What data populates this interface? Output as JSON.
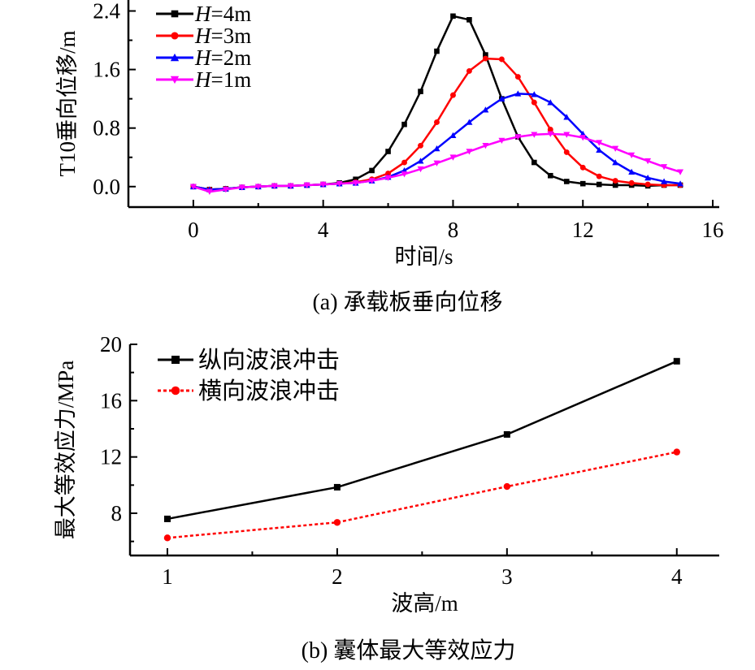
{
  "chart_data": [
    {
      "type": "line",
      "caption": "(a)  承载板垂向位移",
      "xlabel": "时间/s",
      "ylabel": "T10垂向位移/m",
      "xlim": [
        -2,
        16.2
      ],
      "ylim": [
        -0.28,
        2.55
      ],
      "xticks": [
        0,
        4,
        8,
        12,
        16
      ],
      "xtick_labels": [
        "0",
        "4",
        "8",
        "12",
        "16"
      ],
      "yticks": [
        0.0,
        0.8,
        1.6,
        2.4
      ],
      "ytick_labels": [
        "0.0",
        "0.8",
        "1.6",
        "2.4"
      ],
      "grid": false,
      "legend_position": "top-left",
      "x": [
        0,
        0.5,
        1,
        1.5,
        2,
        2.5,
        3,
        3.5,
        4,
        4.5,
        5,
        5.5,
        6,
        6.5,
        7,
        7.5,
        8,
        8.5,
        9,
        9.5,
        10,
        10.5,
        11,
        11.5,
        12,
        12.5,
        13,
        13.5,
        14,
        14.5,
        15
      ],
      "series": [
        {
          "name_prefix": "H",
          "name_suffix": "=4m",
          "color": "#000000",
          "marker": "square",
          "values": [
            0,
            -0.04,
            -0.03,
            -0.01,
            0,
            0.01,
            0.01,
            0.02,
            0.03,
            0.05,
            0.1,
            0.22,
            0.48,
            0.85,
            1.3,
            1.85,
            2.33,
            2.28,
            1.8,
            1.2,
            0.68,
            0.33,
            0.15,
            0.07,
            0.04,
            0.03,
            0.02,
            0.02,
            0.01,
            0.02,
            0.02
          ]
        },
        {
          "name_prefix": "H",
          "name_suffix": "=3m",
          "color": "#ff0000",
          "marker": "circle",
          "values": [
            0,
            -0.04,
            -0.03,
            -0.01,
            0,
            0.01,
            0.01,
            0.02,
            0.03,
            0.04,
            0.06,
            0.1,
            0.18,
            0.33,
            0.56,
            0.88,
            1.25,
            1.58,
            1.75,
            1.74,
            1.5,
            1.15,
            0.78,
            0.47,
            0.26,
            0.14,
            0.08,
            0.05,
            0.03,
            0.02,
            0.02
          ]
        },
        {
          "name_prefix": "H",
          "name_suffix": "=2m",
          "color": "#0000ff",
          "marker": "triangle-up",
          "values": [
            0,
            -0.04,
            -0.03,
            -0.01,
            0,
            0.01,
            0.01,
            0.02,
            0.03,
            0.04,
            0.05,
            0.08,
            0.13,
            0.22,
            0.35,
            0.52,
            0.7,
            0.88,
            1.05,
            1.2,
            1.27,
            1.26,
            1.15,
            0.95,
            0.72,
            0.5,
            0.33,
            0.2,
            0.12,
            0.07,
            0.04
          ]
        },
        {
          "name_prefix": "H",
          "name_suffix": "=1m",
          "color": "#ff00ff",
          "marker": "triangle-down",
          "values": [
            0,
            -0.07,
            -0.04,
            -0.01,
            0,
            0.01,
            0.01,
            0.02,
            0.03,
            0.04,
            0.05,
            0.08,
            0.12,
            0.17,
            0.24,
            0.32,
            0.4,
            0.48,
            0.56,
            0.63,
            0.68,
            0.71,
            0.72,
            0.71,
            0.67,
            0.6,
            0.52,
            0.43,
            0.35,
            0.27,
            0.2
          ]
        }
      ]
    },
    {
      "type": "line",
      "caption": "(b)  囊体最大等效应力",
      "xlabel": "波高/m",
      "ylabel": "最大等效应力/MPa",
      "xlim": [
        0.78,
        4.25
      ],
      "ylim": [
        5,
        20
      ],
      "xticks": [
        1,
        2,
        3,
        4
      ],
      "xtick_labels": [
        "1",
        "2",
        "3",
        "4"
      ],
      "yticks": [
        8,
        12,
        16,
        20
      ],
      "ytick_labels": [
        "8",
        "12",
        "16",
        "20"
      ],
      "grid": false,
      "legend_position": "top-left",
      "x": [
        1,
        2,
        3,
        4
      ],
      "series": [
        {
          "name": "纵向波浪冲击",
          "color": "#000000",
          "marker": "square",
          "dash": "solid",
          "values": [
            7.6,
            9.85,
            13.6,
            18.8
          ]
        },
        {
          "name": "横向波浪冲击",
          "color": "#ff0000",
          "marker": "circle",
          "dash": "dashed",
          "values": [
            6.25,
            7.35,
            9.9,
            12.35
          ]
        }
      ]
    }
  ]
}
